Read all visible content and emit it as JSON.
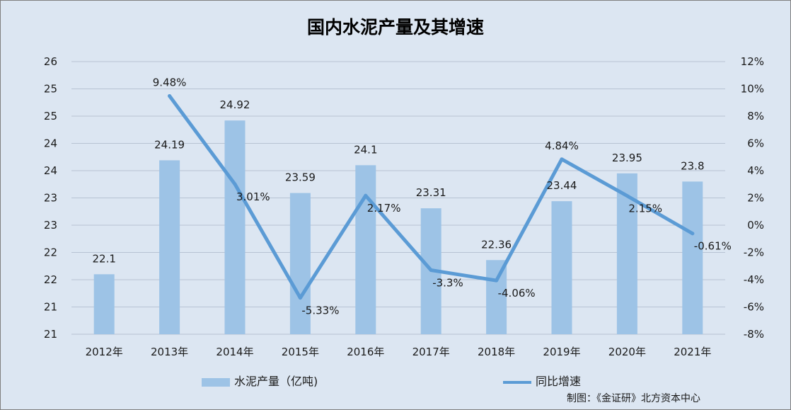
{
  "chart_data": {
    "type": "bar",
    "title": "国内水泥产量及其增速",
    "categories": [
      "2012年",
      "2013年",
      "2014年",
      "2015年",
      "2016年",
      "2017年",
      "2018年",
      "2019年",
      "2020年",
      "2021年"
    ],
    "series": [
      {
        "name": "水泥产量（亿吨)",
        "type": "bar",
        "axis": "left",
        "values": [
          22.1,
          24.19,
          24.92,
          23.59,
          24.1,
          23.31,
          22.36,
          23.44,
          23.95,
          23.8
        ],
        "labels": [
          "22.1",
          "24.19",
          "24.92",
          "23.59",
          "24.1",
          "23.31",
          "22.36",
          "23.44",
          "23.95",
          "23.8"
        ],
        "color": "#9dc3e6"
      },
      {
        "name": "同比增速",
        "type": "line",
        "axis": "right",
        "values": [
          null,
          9.48,
          3.01,
          -5.33,
          2.17,
          -3.3,
          -4.06,
          4.84,
          2.15,
          -0.61
        ],
        "labels": [
          "",
          "9.48%",
          "3.01%",
          "-5.33%",
          "2.17%",
          "-3.3%",
          "-4.06%",
          "4.84%",
          "2.15%",
          "-0.61%"
        ],
        "color": "#5b9bd5"
      }
    ],
    "y_left": {
      "min": 21,
      "max": 26,
      "ticks": [
        "21",
        "21",
        "22",
        "22",
        "23",
        "23",
        "24",
        "24",
        "25",
        "25",
        "26"
      ]
    },
    "y_right": {
      "min": -8,
      "max": 12,
      "ticks": [
        "-8%",
        "-6%",
        "-4%",
        "-2%",
        "0%",
        "2%",
        "4%",
        "6%",
        "8%",
        "10%",
        "12%"
      ]
    },
    "grid": true,
    "legend_position": "bottom",
    "source": "制图：《金证研》北方资本中心"
  }
}
